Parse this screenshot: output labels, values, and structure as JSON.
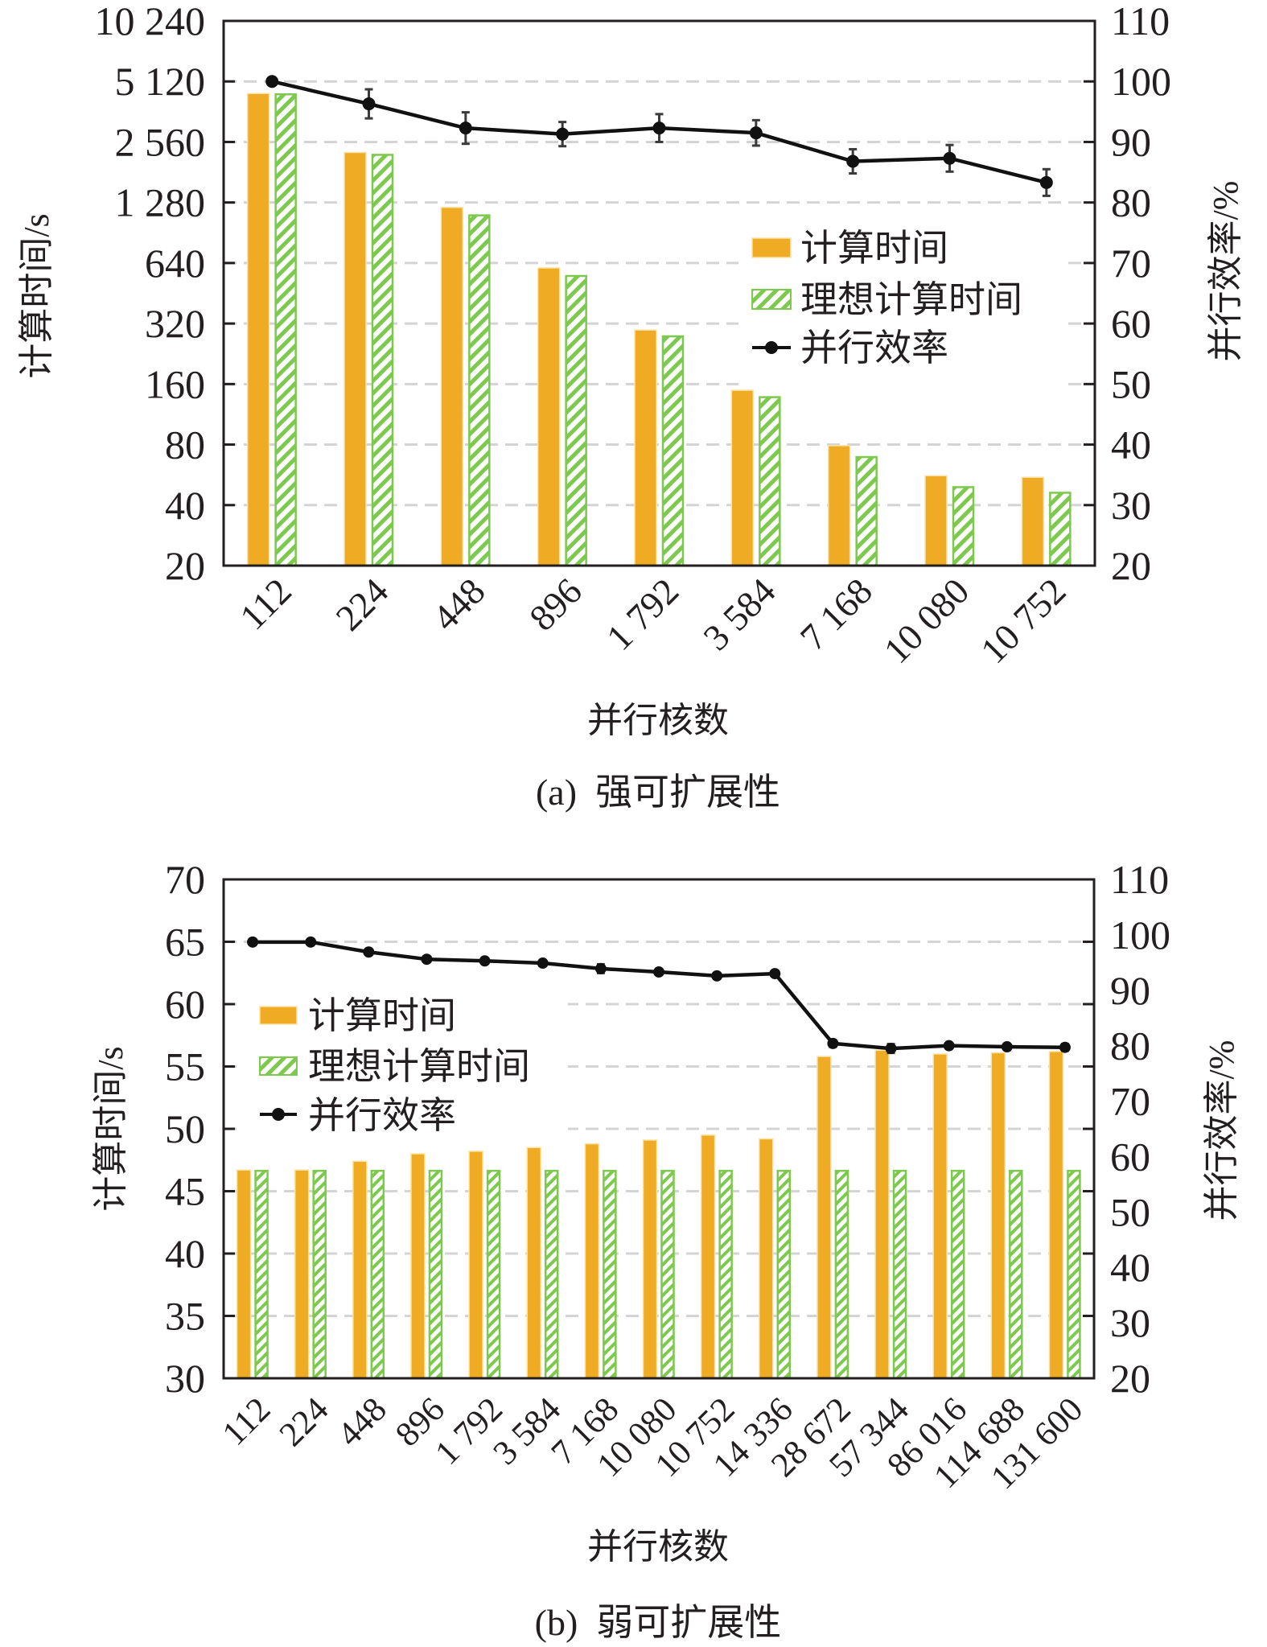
{
  "colors": {
    "actual_fill": "#EFAB24",
    "actual_edge": "#FBE3A6",
    "ideal_stroke": "#7DC94E",
    "line": "#111111",
    "errorbar": "#3a3a3a",
    "grid": "#d4d4d4",
    "axis": "#231f20"
  },
  "chart_data": [
    {
      "type": "bar",
      "id": "a",
      "title": "(a)  强可扩展性",
      "xlabel": "并行核数",
      "ylabel": "计算时间/s",
      "y2label": "并行效率/%",
      "yscale": "log2",
      "ylim": [
        20,
        10240
      ],
      "yticks": [
        "10 240",
        "5 120",
        "2 560",
        "1 280",
        "640",
        "320",
        "160",
        "80",
        "40",
        "20"
      ],
      "ytick_values": [
        10240,
        5120,
        2560,
        1280,
        640,
        320,
        160,
        80,
        40,
        20
      ],
      "y2lim": [
        20,
        110
      ],
      "y2ticks": [
        "110",
        "100",
        "90",
        "80",
        "70",
        "60",
        "50",
        "40",
        "30",
        "20"
      ],
      "grid": true,
      "legend_position": "center-right",
      "categories": [
        "112",
        "224",
        "448",
        "896",
        "1 792",
        "3 584",
        "7 168",
        "10 080",
        "10 752"
      ],
      "series": [
        {
          "name": "计算时间",
          "kind": "bar",
          "values": [
            4460,
            2270,
            1210,
            605,
            297,
            149,
            79,
            56,
            55
          ]
        },
        {
          "name": "理想计算时间",
          "kind": "hatched-bar",
          "values": [
            4460,
            2230,
            1115,
            557,
            279,
            139,
            70,
            49.6,
            46.5
          ]
        },
        {
          "name": "并行效率",
          "kind": "line",
          "axis": "right",
          "values": [
            100,
            96.3,
            92.3,
            91.3,
            92.3,
            91.5,
            86.8,
            87.3,
            83.3
          ],
          "errors": [
            0,
            2.4,
            2.6,
            2.0,
            2.3,
            2.1,
            2.0,
            2.2,
            2.2
          ]
        }
      ]
    },
    {
      "type": "bar",
      "id": "b",
      "title": "(b)  弱可扩展性",
      "xlabel": "并行核数",
      "ylabel": "计算时间/s",
      "y2label": "并行效率/%",
      "yscale": "linear",
      "ylim": [
        30,
        70
      ],
      "yticks": [
        "70",
        "65",
        "60",
        "55",
        "50",
        "45",
        "40",
        "35",
        "30"
      ],
      "ytick_values": [
        70,
        65,
        60,
        55,
        50,
        45,
        40,
        35,
        30
      ],
      "y2lim": [
        20,
        110
      ],
      "y2ticks": [
        "110",
        "100",
        "90",
        "80",
        "70",
        "60",
        "50",
        "40",
        "30",
        "20"
      ],
      "grid": true,
      "legend_position": "upper-left",
      "categories": [
        "112",
        "224",
        "448",
        "896",
        "1 792",
        "3 584",
        "7 168",
        "10 080",
        "10 752",
        "14 336",
        "28 672",
        "57 344",
        "86 016",
        "114 688",
        "131 600"
      ],
      "series": [
        {
          "name": "计算时间",
          "kind": "bar",
          "values": [
            46.7,
            46.7,
            47.4,
            48.0,
            48.2,
            48.5,
            48.8,
            49.1,
            49.5,
            49.2,
            55.8,
            56.3,
            56.0,
            56.1,
            56.2
          ]
        },
        {
          "name": "理想计算时间",
          "kind": "hatched-bar",
          "values": [
            46.7,
            46.7,
            46.7,
            46.7,
            46.7,
            46.7,
            46.7,
            46.7,
            46.7,
            46.7,
            46.7,
            46.7,
            46.7,
            46.7,
            46.7
          ]
        },
        {
          "name": "并行效率",
          "kind": "line",
          "axis": "right",
          "values": [
            98.7,
            98.7,
            96.9,
            95.6,
            95.3,
            94.9,
            93.9,
            93.3,
            92.6,
            93.0,
            80.4,
            79.5,
            80.0,
            79.8,
            79.7
          ],
          "errors": [
            0.3,
            0.3,
            0.5,
            0.5,
            0.5,
            0.5,
            0.8,
            0.4,
            0.5,
            0.4,
            0.6,
            0.8,
            0.4,
            0.4,
            0.6
          ]
        }
      ]
    }
  ]
}
